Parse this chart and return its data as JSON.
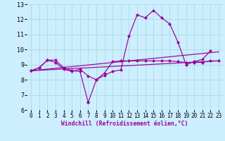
{
  "xlabel": "Windchill (Refroidissement éolien,°C)",
  "bg_color": "#cceeff",
  "line_color": "#990099",
  "grid_color": "#aadddd",
  "xlim": [
    -0.5,
    23.5
  ],
  "ylim": [
    6,
    13
  ],
  "xticks": [
    0,
    1,
    2,
    3,
    4,
    5,
    6,
    7,
    8,
    9,
    10,
    11,
    12,
    13,
    14,
    15,
    16,
    17,
    18,
    19,
    20,
    21,
    22,
    23
  ],
  "yticks": [
    6,
    7,
    8,
    9,
    10,
    11,
    12,
    13
  ],
  "series1_x": [
    0,
    1,
    2,
    3,
    4,
    5,
    6,
    7,
    7,
    8,
    9,
    10,
    11,
    12,
    13,
    14,
    15,
    16,
    17,
    18,
    19,
    20,
    21,
    22
  ],
  "series1_y": [
    8.6,
    8.8,
    9.3,
    9.3,
    8.8,
    8.6,
    8.55,
    6.5,
    6.5,
    8.0,
    8.3,
    8.55,
    8.65,
    10.9,
    12.3,
    12.1,
    12.6,
    12.1,
    11.7,
    10.5,
    9.0,
    9.2,
    9.35,
    9.9
  ],
  "series2_x": [
    0,
    1,
    2,
    3,
    4,
    5,
    6,
    7,
    8,
    9,
    10,
    11,
    12,
    13,
    14,
    15,
    16,
    17,
    18,
    19,
    20,
    21,
    22,
    23
  ],
  "series2_y": [
    8.6,
    8.8,
    9.3,
    9.15,
    8.7,
    8.55,
    8.7,
    8.25,
    8.0,
    8.45,
    9.2,
    9.25,
    9.25,
    9.25,
    9.25,
    9.25,
    9.25,
    9.25,
    9.2,
    9.15,
    9.15,
    9.15,
    9.25,
    9.25
  ],
  "series3_x": [
    0,
    23
  ],
  "series3_y": [
    8.6,
    9.85
  ],
  "series4_x": [
    0,
    23
  ],
  "series4_y": [
    8.6,
    9.25
  ]
}
